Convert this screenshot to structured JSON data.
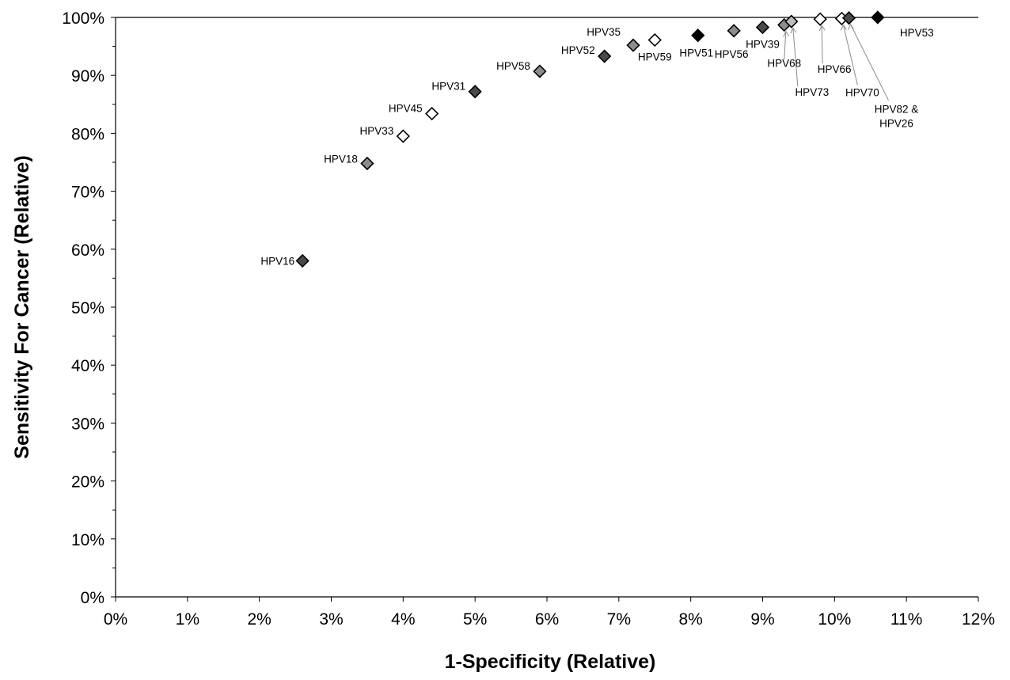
{
  "chart_data": {
    "type": "scatter",
    "title": "",
    "xlabel": "1-Specificity (Relative)",
    "ylabel": "Sensitivity For Cancer (Relative)",
    "xlim": [
      0,
      12
    ],
    "ylim": [
      0,
      100
    ],
    "x_ticks": [
      "0%",
      "1%",
      "2%",
      "3%",
      "4%",
      "5%",
      "6%",
      "7%",
      "8%",
      "9%",
      "10%",
      "11%",
      "12%"
    ],
    "y_ticks": [
      "0%",
      "10%",
      "20%",
      "30%",
      "40%",
      "50%",
      "60%",
      "70%",
      "80%",
      "90%",
      "100%"
    ],
    "grid": false,
    "legend": "none",
    "points": [
      {
        "label": "HPV16",
        "x": 2.6,
        "y": 58.0,
        "fill": "dark"
      },
      {
        "label": "HPV18",
        "x": 3.5,
        "y": 74.8,
        "fill": "medium"
      },
      {
        "label": "HPV33",
        "x": 4.0,
        "y": 79.5,
        "fill": "white"
      },
      {
        "label": "HPV45",
        "x": 4.4,
        "y": 83.4,
        "fill": "white"
      },
      {
        "label": "HPV31",
        "x": 5.0,
        "y": 87.2,
        "fill": "dark"
      },
      {
        "label": "HPV58",
        "x": 5.9,
        "y": 90.7,
        "fill": "medium"
      },
      {
        "label": "HPV52",
        "x": 6.8,
        "y": 93.3,
        "fill": "dark"
      },
      {
        "label": "HPV35",
        "x": 7.2,
        "y": 95.2,
        "fill": "medium"
      },
      {
        "label": "HPV59",
        "x": 7.5,
        "y": 96.1,
        "fill": "white"
      },
      {
        "label": "HPV51",
        "x": 8.1,
        "y": 96.9,
        "fill": "black"
      },
      {
        "label": "HPV56",
        "x": 8.6,
        "y": 97.7,
        "fill": "medium"
      },
      {
        "label": "HPV39",
        "x": 9.0,
        "y": 98.3,
        "fill": "dark"
      },
      {
        "label": "HPV68",
        "x": 9.3,
        "y": 98.7,
        "fill": "medium"
      },
      {
        "label": "HPV73",
        "x": 9.4,
        "y": 99.3,
        "fill": "light"
      },
      {
        "label": "HPV66",
        "x": 9.8,
        "y": 99.7,
        "fill": "white"
      },
      {
        "label": "HPV70",
        "x": 10.1,
        "y": 99.8,
        "fill": "white"
      },
      {
        "label": "HPV82 & HPV26",
        "x": 10.2,
        "y": 99.9,
        "fill": "dark"
      },
      {
        "label": "HPV53",
        "x": 10.6,
        "y": 100.0,
        "fill": "black"
      }
    ],
    "label_lines": [
      {
        "label": "HPV82 &",
        "point": "HPV82 & HPV26"
      },
      {
        "label": "HPV26",
        "point": "HPV82 & HPV26"
      }
    ]
  },
  "colors": {
    "axis": "#000000",
    "marker_stroke": "#000000",
    "black": "#000000",
    "dark": "#4a4a4a",
    "medium": "#8c8c8c",
    "light": "#bdbdbd",
    "white": "#ffffff",
    "leader": "#8a8a8a"
  }
}
